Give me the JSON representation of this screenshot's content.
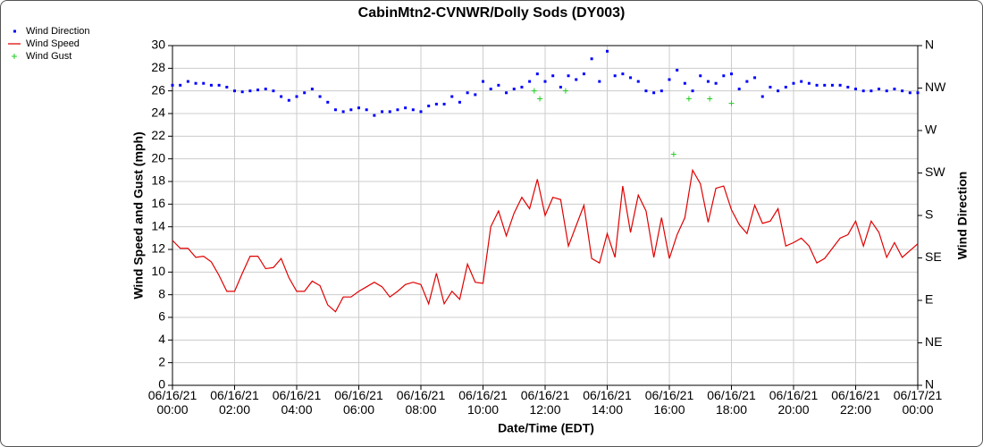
{
  "chart_data": {
    "type": "line",
    "title": "CabinMtn2-CVNWR/Dolly Sods (DY003)",
    "xlabel": "Date/Time (EDT)",
    "ylabel": "Wind Speed and Gust (mph)",
    "y2label": "Wind Direction",
    "x": [
      0,
      0.25,
      0.5,
      0.75,
      1,
      1.25,
      1.5,
      1.75,
      2,
      2.25,
      2.5,
      2.75,
      3,
      3.25,
      3.5,
      3.75,
      4,
      4.25,
      4.5,
      4.75,
      5,
      5.25,
      5.5,
      5.75,
      6,
      6.25,
      6.5,
      6.75,
      7,
      7.25,
      7.5,
      7.75,
      8,
      8.25,
      8.5,
      8.75,
      9,
      9.25,
      9.5,
      9.75,
      10,
      10.25,
      10.5,
      10.75,
      11,
      11.25,
      11.5,
      11.75,
      12,
      12.25,
      12.5,
      12.75,
      13,
      13.25,
      13.5,
      13.75,
      14,
      14.25,
      14.5,
      14.75,
      15,
      15.25,
      15.5,
      15.75,
      16,
      16.25,
      16.5,
      16.75,
      17,
      17.25,
      17.5,
      17.75,
      18,
      18.25,
      18.5,
      18.75,
      19,
      19.25,
      19.5,
      19.75,
      20,
      20.25,
      20.5,
      20.75,
      21,
      21.25,
      21.5,
      21.75,
      22,
      22.25,
      22.5,
      22.75,
      23,
      23.25,
      23.5,
      23.75,
      24
    ],
    "xlim": [
      0,
      24
    ],
    "xticks": [
      {
        "value": 0,
        "label": "06/16/21\n00:00"
      },
      {
        "value": 2,
        "label": "06/16/21\n02:00"
      },
      {
        "value": 4,
        "label": "06/16/21\n04:00"
      },
      {
        "value": 6,
        "label": "06/16/21\n06:00"
      },
      {
        "value": 8,
        "label": "06/16/21\n08:00"
      },
      {
        "value": 10,
        "label": "06/16/21\n10:00"
      },
      {
        "value": 12,
        "label": "06/16/21\n12:00"
      },
      {
        "value": 14,
        "label": "06/16/21\n14:00"
      },
      {
        "value": 16,
        "label": "06/16/21\n16:00"
      },
      {
        "value": 18,
        "label": "06/16/21\n18:00"
      },
      {
        "value": 20,
        "label": "06/16/21\n20:00"
      },
      {
        "value": 22,
        "label": "06/16/21\n22:00"
      },
      {
        "value": 24,
        "label": "06/17/21\n00:00"
      }
    ],
    "ylim": [
      0,
      30
    ],
    "yticks": [
      0,
      2,
      4,
      6,
      8,
      10,
      12,
      14,
      16,
      18,
      20,
      22,
      24,
      26,
      28,
      30
    ],
    "y2lim": [
      0,
      360
    ],
    "y2ticks": [
      {
        "value": 0,
        "label": "N"
      },
      {
        "value": 45,
        "label": "NE"
      },
      {
        "value": 90,
        "label": "E"
      },
      {
        "value": 135,
        "label": "SE"
      },
      {
        "value": 180,
        "label": "S"
      },
      {
        "value": 225,
        "label": "SW"
      },
      {
        "value": 270,
        "label": "W"
      },
      {
        "value": 315,
        "label": "NW"
      },
      {
        "value": 360,
        "label": "N"
      }
    ],
    "grid": true,
    "legend": "top-left",
    "series": [
      {
        "name": "Wind Direction",
        "type": "scatter",
        "marker": "dot",
        "color": "#0000ff",
        "axis": "y2",
        "values": [
          318,
          318,
          322,
          320,
          320,
          318,
          318,
          316,
          312,
          311,
          312,
          313,
          314,
          312,
          306,
          302,
          306,
          310,
          314,
          306,
          300,
          292,
          290,
          292,
          294,
          292,
          286,
          290,
          290,
          292,
          294,
          292,
          290,
          296,
          298,
          298,
          306,
          300,
          310,
          308,
          322,
          314,
          318,
          310,
          314,
          316,
          322,
          330,
          322,
          328,
          316,
          328,
          324,
          330,
          346,
          322,
          354,
          328,
          330,
          326,
          322,
          312,
          310,
          312,
          324,
          334,
          320,
          312,
          328,
          322,
          320,
          328,
          330,
          314,
          322,
          326,
          306,
          316,
          312,
          316,
          320,
          322,
          320,
          318,
          318,
          318,
          318,
          316,
          314,
          312,
          312,
          314,
          312,
          314,
          312,
          310,
          310
        ]
      },
      {
        "name": "Wind Speed",
        "type": "line",
        "color": "#e00000",
        "values": [
          12.8,
          12.1,
          12.1,
          11.3,
          11.4,
          10.9,
          9.7,
          8.3,
          8.3,
          9.9,
          11.4,
          11.4,
          10.3,
          10.4,
          11.2,
          9.5,
          8.3,
          8.3,
          9.2,
          8.8,
          7.1,
          6.5,
          7.8,
          7.8,
          8.3,
          8.7,
          9.1,
          8.7,
          7.8,
          8.3,
          8.9,
          9.1,
          8.9,
          7.2,
          9.9,
          7.2,
          8.3,
          7.6,
          10.7,
          9.1,
          9.0,
          14.0,
          15.4,
          13.2,
          15.2,
          16.6,
          15.6,
          18.2,
          15.0,
          16.6,
          16.4,
          12.3,
          14.1,
          15.9,
          11.2,
          10.8,
          13.4,
          11.3,
          17.6,
          13.5,
          16.8,
          15.4,
          11.3,
          14.8,
          11.2,
          13.3,
          14.8,
          19.0,
          17.8,
          14.4,
          17.4,
          17.6,
          15.5,
          14.2,
          13.4,
          15.9,
          14.3,
          14.5,
          15.6,
          12.3,
          12.6,
          13.0,
          12.3,
          10.8,
          11.2,
          12.1,
          13.0,
          13.3,
          14.5,
          12.3,
          14.5,
          13.5,
          11.3,
          12.6,
          11.3,
          11.9,
          12.5
        ]
      },
      {
        "name": "Wind Gust",
        "type": "scatter",
        "marker": "plus",
        "color": "#22cc22",
        "x": [
          11.65,
          11.83,
          12.66,
          16.14,
          16.63,
          17.3,
          18.0
        ],
        "values": [
          26.0,
          25.3,
          26.0,
          20.4,
          25.3,
          25.3,
          24.9
        ]
      }
    ]
  }
}
